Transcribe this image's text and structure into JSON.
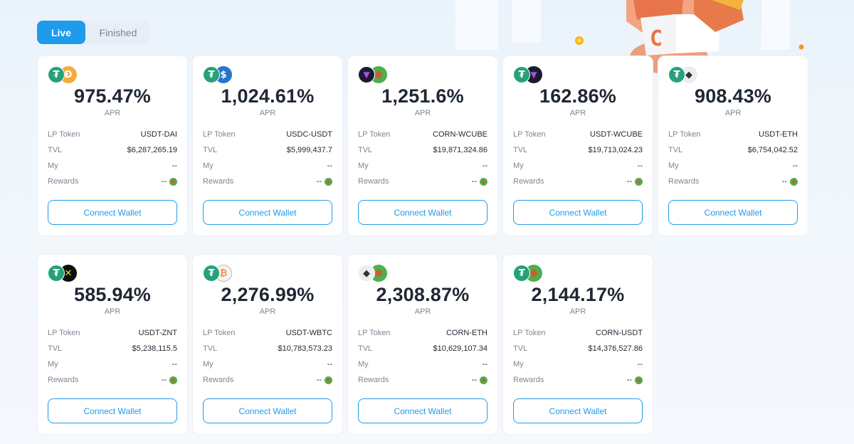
{
  "tabs": [
    {
      "label": "Live",
      "active": true
    },
    {
      "label": "Finished",
      "active": false
    }
  ],
  "colors": {
    "accent": "#1e9bea",
    "usdt": "#26a17b",
    "dai": "#f5ac37",
    "usdc": "#2775ca",
    "eth": "#ecedf0",
    "wbtc": "#f09242",
    "corn": "#4caf50",
    "wcube": "#1b1b2f",
    "znt": "#0e0e0e"
  },
  "labels": {
    "apr": "APR",
    "lp_token": "LP Token",
    "tvl": "TVL",
    "my": "My",
    "rewards": "Rewards",
    "connect_wallet": "Connect Wallet",
    "dash": "--"
  },
  "pools": [
    {
      "apr": "975.47%",
      "lp_token": "USDT-DAI",
      "tvl": "$6,287,265.19",
      "my": "--",
      "rewards": "--",
      "icons": [
        "usdt-icon",
        "dai-icon"
      ]
    },
    {
      "apr": "1,024.61%",
      "lp_token": "USDC-USDT",
      "tvl": "$5,999,437.7",
      "my": "--",
      "rewards": "--",
      "icons": [
        "usdt-icon",
        "usdc-icon"
      ]
    },
    {
      "apr": "1,251.6%",
      "lp_token": "CORN-WCUBE",
      "tvl": "$19,871,324.86",
      "my": "--",
      "rewards": "--",
      "icons": [
        "wcube-icon",
        "corn-icon"
      ]
    },
    {
      "apr": "162.86%",
      "lp_token": "USDT-WCUBE",
      "tvl": "$19,713,024.23",
      "my": "--",
      "rewards": "--",
      "icons": [
        "usdt-icon",
        "wcube-icon"
      ]
    },
    {
      "apr": "908.43%",
      "lp_token": "USDT-ETH",
      "tvl": "$6,754,042.52",
      "my": "--",
      "rewards": "--",
      "icons": [
        "usdt-icon",
        "eth-icon"
      ]
    },
    {
      "apr": "585.94%",
      "lp_token": "USDT-ZNT",
      "tvl": "$5,238,115.5",
      "my": "--",
      "rewards": "--",
      "icons": [
        "usdt-icon",
        "znt-icon"
      ]
    },
    {
      "apr": "2,276.99%",
      "lp_token": "USDT-WBTC",
      "tvl": "$10,783,573.23",
      "my": "--",
      "rewards": "--",
      "icons": [
        "usdt-icon",
        "wbtc-icon"
      ]
    },
    {
      "apr": "2,308.87%",
      "lp_token": "CORN-ETH",
      "tvl": "$10,629,107.34",
      "my": "--",
      "rewards": "--",
      "icons": [
        "eth-icon",
        "corn-icon"
      ]
    },
    {
      "apr": "2,144.17%",
      "lp_token": "CORN-USDT",
      "tvl": "$14,376,527.86",
      "my": "--",
      "rewards": "--",
      "icons": [
        "usdt-icon",
        "corn-icon"
      ]
    }
  ]
}
